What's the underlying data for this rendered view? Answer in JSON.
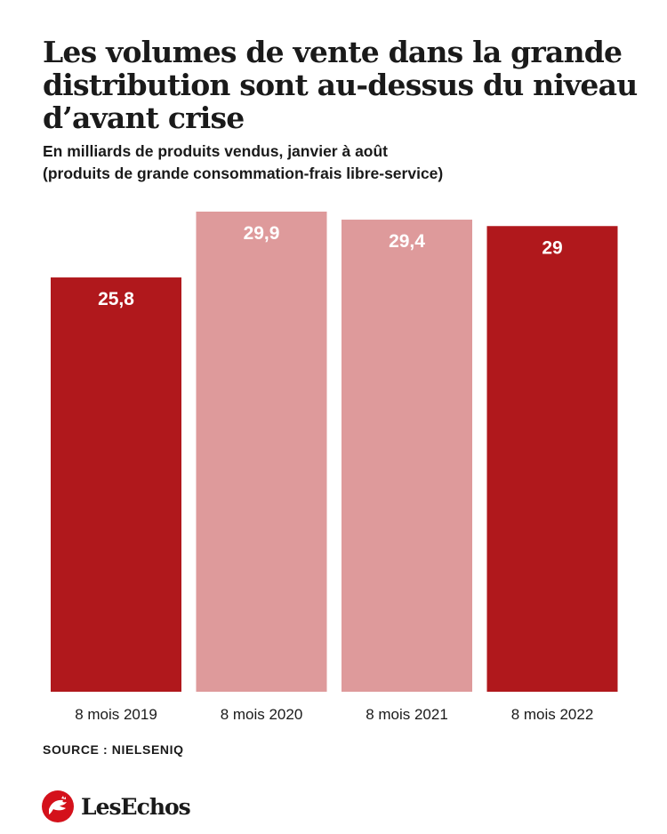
{
  "header": {
    "title": "Les volumes de vente dans la grande distribution sont au-dessus du niveau d’avant crise",
    "subtitle_line1": "En milliards de produits vendus, janvier à août",
    "subtitle_line2": "(produits de grande consommation-frais libre-service)"
  },
  "chart_data": {
    "type": "bar",
    "categories": [
      "8 mois 2019",
      "8 mois 2020",
      "8 mois 2021",
      "8 mois 2022"
    ],
    "values": [
      25.8,
      29.9,
      29.4,
      29
    ],
    "data_labels": [
      "25,8",
      "29,9",
      "29,4",
      "29"
    ],
    "colors": [
      "#b0181c",
      "#de9a9b",
      "#de9a9b",
      "#b0181c"
    ],
    "title": "Les volumes de vente dans la grande distribution sont au-dessus du niveau d’avant crise",
    "xlabel": "",
    "ylabel": "",
    "ylim": [
      0,
      30
    ],
    "grid": false,
    "legend": "none"
  },
  "footer": {
    "source": "SOURCE : NIELSENIQ",
    "brand": "LesEchos",
    "brand_icon": "les-echos-rooster-icon",
    "brand_color": "#d4111b"
  }
}
